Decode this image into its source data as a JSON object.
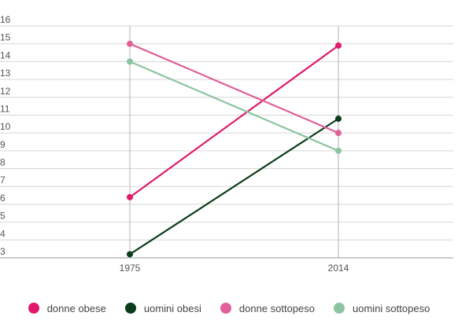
{
  "chart_data": {
    "type": "line",
    "x": [
      "1975",
      "2014"
    ],
    "ylim": [
      3,
      16
    ],
    "yticks": [
      "3",
      "4",
      "5",
      "6",
      "7",
      "8",
      "9",
      "10",
      "11",
      "12",
      "13",
      "14",
      "15",
      "16"
    ],
    "grid": true,
    "legend_position": "bottom",
    "series": [
      {
        "name": "donne obese",
        "color": "#e0196b",
        "values": [
          6.4,
          14.9
        ]
      },
      {
        "name": "uomini obesi",
        "color": "#0b3d1a",
        "values": [
          3.2,
          10.8
        ]
      },
      {
        "name": "donne sottopeso",
        "color": "#e0609a",
        "values": [
          15.0,
          10.0
        ]
      },
      {
        "name": "uomini sottopeso",
        "color": "#8cc4a0",
        "values": [
          14.0,
          9.0
        ]
      }
    ]
  }
}
